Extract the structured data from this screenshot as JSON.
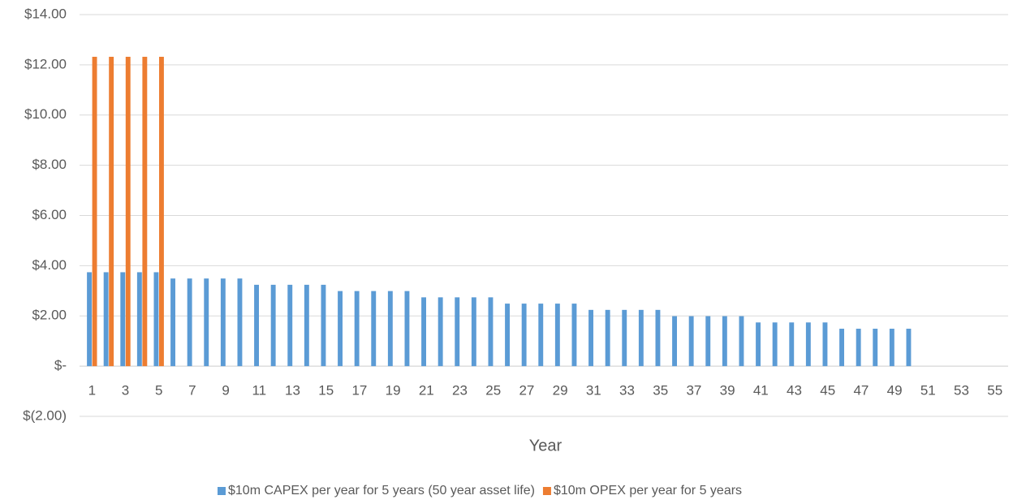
{
  "chart_data": {
    "type": "bar",
    "x_label": "Year",
    "categories": [
      1,
      null,
      3,
      null,
      5,
      null,
      7,
      null,
      9,
      null,
      11,
      null,
      13,
      null,
      15,
      null,
      17,
      null,
      19,
      null,
      21,
      null,
      23,
      null,
      25,
      null,
      27,
      null,
      29,
      null,
      31,
      null,
      33,
      null,
      35,
      null,
      37,
      null,
      39,
      null,
      41,
      null,
      43,
      null,
      45,
      null,
      47,
      null,
      49,
      null,
      51,
      null,
      53,
      null,
      55
    ],
    "series": [
      {
        "name": "$10m CAPEX per year for 5 years (50 year asset life)",
        "color": "#5b9bd5",
        "values": [
          3.74,
          3.74,
          3.74,
          3.74,
          3.74,
          3.49,
          3.49,
          3.49,
          3.49,
          3.49,
          3.24,
          3.24,
          3.24,
          3.24,
          3.24,
          2.99,
          2.99,
          2.99,
          2.99,
          2.99,
          2.74,
          2.74,
          2.74,
          2.74,
          2.74,
          2.49,
          2.49,
          2.49,
          2.49,
          2.49,
          2.24,
          2.24,
          2.24,
          2.24,
          2.24,
          1.99,
          1.99,
          1.99,
          1.99,
          1.99,
          1.74,
          1.74,
          1.74,
          1.74,
          1.74,
          1.49,
          1.49,
          1.49,
          1.49,
          1.49,
          null,
          null,
          null,
          null,
          null
        ]
      },
      {
        "name": "$10m OPEX per year for 5 years",
        "color": "#ed7d31",
        "values": [
          12.32,
          12.32,
          12.32,
          12.32,
          12.32,
          null,
          null,
          null,
          null,
          null,
          null,
          null,
          null,
          null,
          null,
          null,
          null,
          null,
          null,
          null,
          null,
          null,
          null,
          null,
          null,
          null,
          null,
          null,
          null,
          null,
          null,
          null,
          null,
          null,
          null,
          null,
          null,
          null,
          null,
          null,
          null,
          null,
          null,
          null,
          null,
          null,
          null,
          null,
          null,
          null,
          null,
          null,
          null,
          null,
          null
        ]
      }
    ],
    "ylim": [
      -2,
      14
    ],
    "yticks": [
      {
        "value": -2,
        "label": "$(2.00)"
      },
      {
        "value": 0,
        "label": "$-"
      },
      {
        "value": 2,
        "label": "$2.00"
      },
      {
        "value": 4,
        "label": "$4.00"
      },
      {
        "value": 6,
        "label": "$6.00"
      },
      {
        "value": 8,
        "label": "$8.00"
      },
      {
        "value": 10,
        "label": "$10.00"
      },
      {
        "value": 12,
        "label": "$12.00"
      },
      {
        "value": 14,
        "label": "$14.00"
      }
    ],
    "grid": true,
    "legend": "bottom"
  }
}
